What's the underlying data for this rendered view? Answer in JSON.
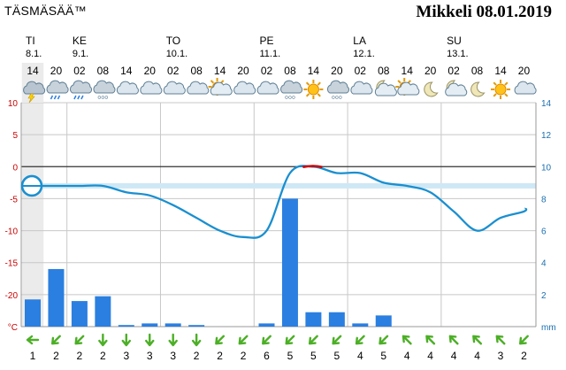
{
  "header": {
    "brand": "TÄSMÄSÄÄ™",
    "title": "Mikkeli 08.01.2019"
  },
  "days": [
    {
      "name": "TI",
      "date": "8.1.",
      "first_index": 0
    },
    {
      "name": "KE",
      "date": "9.1.",
      "first_index": 2
    },
    {
      "name": "TO",
      "date": "10.1.",
      "first_index": 6
    },
    {
      "name": "PE",
      "date": "11.1.",
      "first_index": 10
    },
    {
      "name": "LA",
      "date": "12.1.",
      "first_index": 14
    },
    {
      "name": "SU",
      "date": "13.1.",
      "first_index": 18
    }
  ],
  "hours": [
    "14",
    "20",
    "02",
    "08",
    "14",
    "20",
    "02",
    "08",
    "14",
    "20",
    "02",
    "08",
    "14",
    "20",
    "02",
    "08",
    "14",
    "20",
    "02",
    "08",
    "14",
    "20"
  ],
  "icons": [
    "cloud-thunder",
    "cloud-rain",
    "cloud-rain",
    "cloud-snow",
    "cloud",
    "cloud",
    "cloud",
    "cloud",
    "sun-cloud",
    "cloud",
    "cloud",
    "cloud-snow",
    "sun",
    "cloud-snow",
    "cloud",
    "moon-cloud",
    "sun-cloud",
    "moon",
    "moon-cloud",
    "moon",
    "sun",
    "cloud"
  ],
  "colors": {
    "temperature_line": "#1a8fd0",
    "above_zero": "#cc0000",
    "precipitation_bar": "#2b7fe0",
    "grid": "#c8c8c8",
    "zero_line": "#333333",
    "highlight_band": "#cfe8f5",
    "wind_arrow": "#4caf26",
    "left_axis_text": "#cc0000",
    "right_axis_text": "#1a6fb0",
    "current_column": "#ebebeb"
  },
  "chart_data": {
    "type": "line",
    "x": [
      "TI 14",
      "TI 20",
      "KE 02",
      "KE 08",
      "KE 14",
      "KE 20",
      "TO 02",
      "TO 08",
      "TO 14",
      "TO 20",
      "PE 02",
      "PE 08",
      "PE 14",
      "PE 20",
      "LA 02",
      "LA 08",
      "LA 14",
      "LA 20",
      "SU 02",
      "SU 08",
      "SU 14",
      "SU 20"
    ],
    "left_axis": {
      "label": "°C",
      "ticks": [
        "10",
        "5",
        "0",
        "-5",
        "-10",
        "-15",
        "-20"
      ],
      "ylim": [
        -25,
        10
      ]
    },
    "right_axis": {
      "label": "mm",
      "ticks": [
        "14",
        "12",
        "10",
        "8",
        "6",
        "4",
        "2"
      ],
      "ylim": [
        0,
        14
      ]
    },
    "series": [
      {
        "kind": "temperature",
        "values": [
          -3,
          -3,
          -3,
          -3,
          -4,
          -4.5,
          -6,
          -8,
          -10,
          -11,
          -10,
          -1,
          0,
          -1,
          -1,
          -2.5,
          -3,
          -4,
          -7,
          -10,
          -8,
          -7
        ]
      },
      {
        "kind": "precipitation",
        "values": [
          1.7,
          3.6,
          1.6,
          1.9,
          0.1,
          0.2,
          0.2,
          0.1,
          0,
          0,
          0.2,
          8.0,
          0.9,
          0.9,
          0.2,
          0.7,
          0,
          0,
          0,
          0,
          0,
          0
        ]
      }
    ],
    "wind": {
      "speeds": [
        1,
        2,
        2,
        2,
        3,
        3,
        3,
        2,
        2,
        2,
        6,
        5,
        5,
        5,
        4,
        5,
        4,
        4,
        4,
        4,
        3,
        2
      ],
      "directions_deg": [
        90,
        45,
        45,
        0,
        0,
        0,
        0,
        0,
        45,
        45,
        45,
        45,
        45,
        45,
        45,
        45,
        135,
        135,
        135,
        135,
        135,
        45
      ]
    },
    "current_marker": {
      "x": "TI 14",
      "value": -3
    },
    "grid": true
  }
}
